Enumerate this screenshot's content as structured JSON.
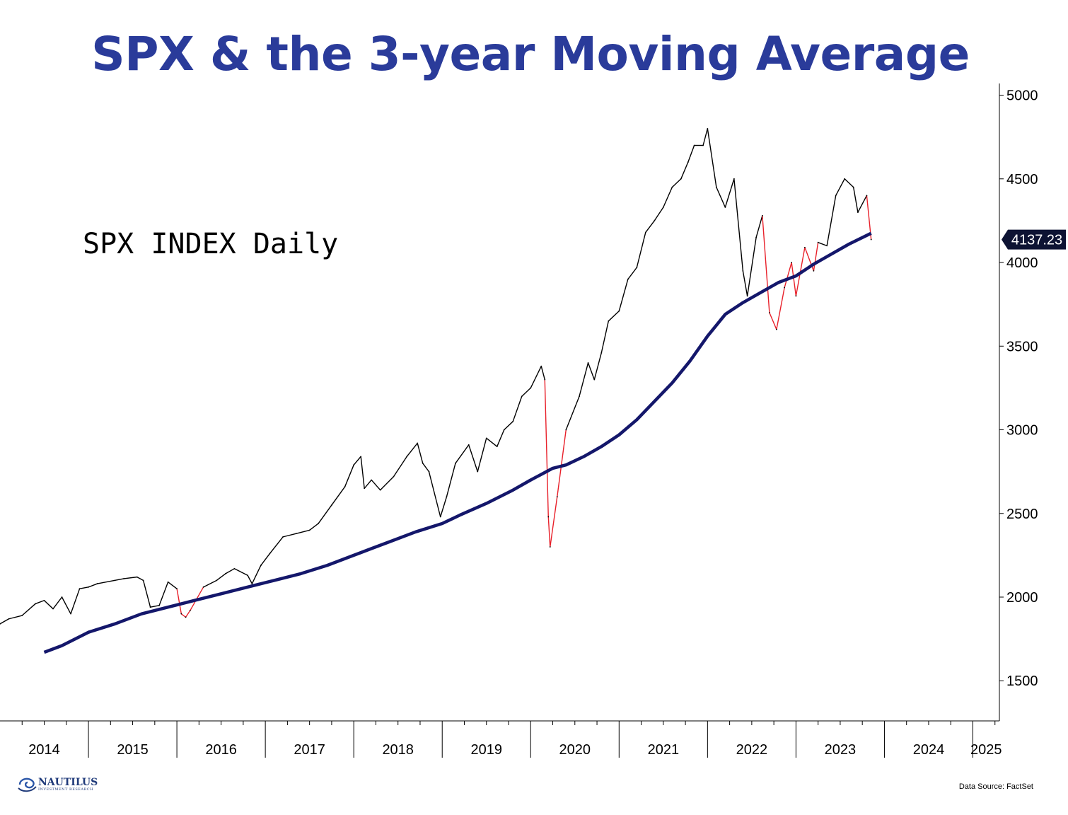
{
  "title": "SPX & the 3-year Moving Average",
  "series_label": "SPX INDEX Daily",
  "source": "Data Source: FactSet",
  "logo": {
    "name": "NAUTILUS",
    "sub": "INVESTMENT RESEARCH"
  },
  "colors": {
    "title": "#2a3b9a",
    "price": "#000000",
    "below_ma": "#e8202a",
    "moving_average": "#14176b",
    "last_badge": "#0d1333"
  },
  "chart_data": {
    "type": "line",
    "title": "SPX & the 3-year Moving Average",
    "xlabel": "",
    "ylabel": "",
    "xlim": [
      2014.0,
      2025.3
    ],
    "ylim": [
      1260,
      5070
    ],
    "y_ticks": [
      1500,
      2000,
      2500,
      3000,
      3500,
      4000,
      4500,
      5000
    ],
    "x_tick_labels": [
      "2014",
      "2015",
      "2016",
      "2017",
      "2018",
      "2019",
      "2020",
      "2021",
      "2022",
      "2023",
      "2024",
      "2025"
    ],
    "last_value_label": "4137.23",
    "grid": false,
    "series": [
      {
        "name": "SPX INDEX Daily",
        "x": [
          2014.0,
          2014.1,
          2014.25,
          2014.4,
          2014.5,
          2014.6,
          2014.7,
          2014.8,
          2014.9,
          2015.0,
          2015.1,
          2015.3,
          2015.4,
          2015.55,
          2015.62,
          2015.7,
          2015.8,
          2015.9,
          2016.0,
          2016.05,
          2016.1,
          2016.15,
          2016.3,
          2016.45,
          2016.55,
          2016.65,
          2016.8,
          2016.85,
          2016.95,
          2017.05,
          2017.2,
          2017.35,
          2017.5,
          2017.6,
          2017.75,
          2017.9,
          2018.0,
          2018.08,
          2018.12,
          2018.2,
          2018.3,
          2018.45,
          2018.6,
          2018.72,
          2018.78,
          2018.85,
          2018.98,
          2019.05,
          2019.15,
          2019.3,
          2019.4,
          2019.5,
          2019.62,
          2019.7,
          2019.8,
          2019.9,
          2020.0,
          2020.12,
          2020.16,
          2020.2,
          2020.22,
          2020.3,
          2020.4,
          2020.55,
          2020.65,
          2020.72,
          2020.8,
          2020.88,
          2021.0,
          2021.1,
          2021.2,
          2021.3,
          2021.4,
          2021.5,
          2021.6,
          2021.7,
          2021.78,
          2021.85,
          2021.95,
          2022.0,
          2022.1,
          2022.2,
          2022.3,
          2022.4,
          2022.45,
          2022.55,
          2022.62,
          2022.7,
          2022.78,
          2022.87,
          2022.95,
          2023.0,
          2023.1,
          2023.2,
          2023.25,
          2023.35,
          2023.45,
          2023.55,
          2023.65,
          2023.7,
          2023.8,
          2023.85
        ],
        "y": [
          1840,
          1870,
          1890,
          1960,
          1980,
          1930,
          2000,
          1900,
          2050,
          2060,
          2080,
          2100,
          2110,
          2120,
          2100,
          1940,
          1950,
          2090,
          2050,
          1900,
          1880,
          1920,
          2060,
          2100,
          2140,
          2170,
          2130,
          2080,
          2190,
          2260,
          2360,
          2380,
          2400,
          2440,
          2550,
          2660,
          2790,
          2840,
          2650,
          2700,
          2640,
          2720,
          2840,
          2920,
          2800,
          2750,
          2480,
          2600,
          2800,
          2910,
          2750,
          2950,
          2900,
          3000,
          3050,
          3200,
          3250,
          3380,
          3300,
          2480,
          2300,
          2600,
          3000,
          3200,
          3400,
          3300,
          3460,
          3650,
          3710,
          3900,
          3970,
          4180,
          4250,
          4330,
          4450,
          4500,
          4600,
          4700,
          4700,
          4800,
          4450,
          4330,
          4500,
          3950,
          3800,
          4150,
          4280,
          3700,
          3600,
          3850,
          4000,
          3800,
          4090,
          3950,
          4120,
          4100,
          4400,
          4500,
          4450,
          4300,
          4400,
          4137.23
        ]
      },
      {
        "name": "3-year Moving Average",
        "x": [
          2014.5,
          2014.7,
          2015.0,
          2015.3,
          2015.6,
          2015.9,
          2016.2,
          2016.5,
          2016.8,
          2017.1,
          2017.4,
          2017.7,
          2018.0,
          2018.2,
          2018.4,
          2018.7,
          2019.0,
          2019.2,
          2019.5,
          2019.8,
          2020.0,
          2020.25,
          2020.4,
          2020.6,
          2020.8,
          2021.0,
          2021.2,
          2021.4,
          2021.6,
          2021.8,
          2022.0,
          2022.2,
          2022.4,
          2022.6,
          2022.8,
          2023.0,
          2023.2,
          2023.4,
          2023.6,
          2023.85
        ],
        "y": [
          1670,
          1710,
          1790,
          1840,
          1900,
          1940,
          1980,
          2020,
          2060,
          2100,
          2140,
          2190,
          2250,
          2290,
          2330,
          2390,
          2440,
          2490,
          2560,
          2640,
          2700,
          2770,
          2790,
          2840,
          2900,
          2970,
          3060,
          3170,
          3280,
          3410,
          3560,
          3690,
          3760,
          3820,
          3880,
          3920,
          3990,
          4050,
          4110,
          4175
        ]
      }
    ]
  }
}
